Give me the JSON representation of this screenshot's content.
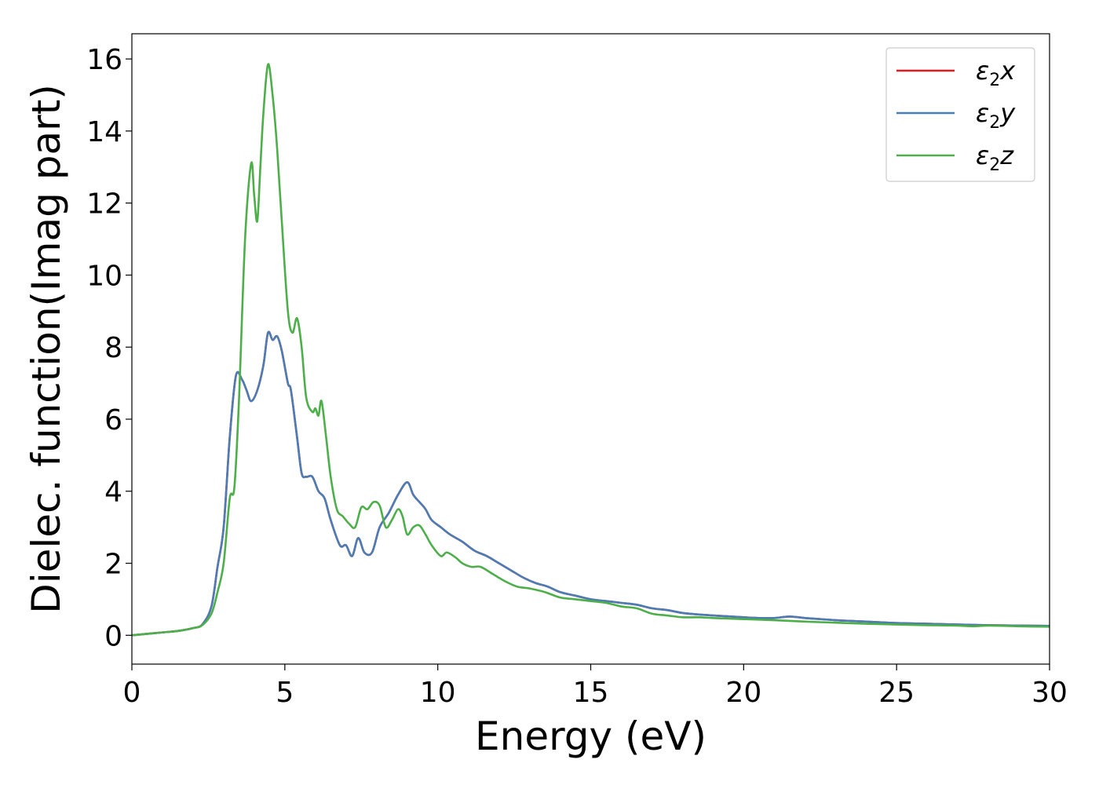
{
  "chart_data": {
    "type": "line",
    "xlabel": "Energy (eV)",
    "ylabel": "Dielec. function(Imag part)",
    "xlim": [
      0,
      30
    ],
    "ylim": [
      -0.8,
      16.7
    ],
    "xticks": [
      0,
      5,
      10,
      15,
      20,
      25,
      30
    ],
    "yticks": [
      0,
      2,
      4,
      6,
      8,
      10,
      12,
      14,
      16
    ],
    "grid": false,
    "legend_position": "top-right",
    "series": [
      {
        "name": "ε₂x",
        "legend_base": "ε",
        "legend_sub": "2",
        "legend_suffix": "x",
        "color": "#e41a1c",
        "x": [
          0,
          1,
          1.5,
          2,
          2.3,
          2.6,
          2.8,
          3.0,
          3.2,
          3.4,
          3.6,
          3.75,
          3.9,
          4.1,
          4.3,
          4.45,
          4.6,
          4.75,
          4.9,
          5.1,
          5.2,
          5.4,
          5.55,
          5.7,
          5.9,
          6.1,
          6.3,
          6.5,
          6.8,
          7.0,
          7.2,
          7.4,
          7.6,
          7.85,
          8.1,
          8.4,
          8.7,
          9.0,
          9.2,
          9.4,
          9.6,
          9.8,
          10.1,
          10.4,
          10.8,
          11.2,
          11.6,
          12.0,
          12.4,
          12.8,
          13.2,
          13.6,
          14.0,
          14.5,
          15.0,
          15.5,
          16.0,
          16.5,
          17.0,
          17.5,
          18.0,
          18.5,
          19.0,
          20.0,
          20.5,
          21.0,
          21.5,
          22.0,
          22.5,
          23.0,
          23.5,
          24.0,
          24.5,
          25.0,
          26.0,
          27.0,
          28.0,
          29.0,
          30.0
        ],
        "values": [
          0,
          0.08,
          0.12,
          0.2,
          0.3,
          0.8,
          1.9,
          3.0,
          5.5,
          7.2,
          7.1,
          6.8,
          6.5,
          6.8,
          7.5,
          8.4,
          8.2,
          8.3,
          7.9,
          7.0,
          6.8,
          5.5,
          4.5,
          4.4,
          4.4,
          4.0,
          3.8,
          3.2,
          2.5,
          2.5,
          2.2,
          2.7,
          2.3,
          2.3,
          3.0,
          3.4,
          3.9,
          4.25,
          3.9,
          3.7,
          3.5,
          3.2,
          3.0,
          2.8,
          2.6,
          2.35,
          2.2,
          2.0,
          1.8,
          1.6,
          1.45,
          1.35,
          1.2,
          1.1,
          1.0,
          0.95,
          0.9,
          0.85,
          0.75,
          0.7,
          0.62,
          0.58,
          0.55,
          0.5,
          0.48,
          0.48,
          0.52,
          0.48,
          0.45,
          0.42,
          0.4,
          0.38,
          0.36,
          0.34,
          0.32,
          0.3,
          0.28,
          0.27,
          0.26
        ]
      },
      {
        "name": "ε₂y",
        "legend_base": "ε",
        "legend_sub": "2",
        "legend_suffix": "y",
        "color": "#4a7db5",
        "x": [
          0,
          1,
          1.5,
          2,
          2.3,
          2.6,
          2.8,
          3.0,
          3.2,
          3.4,
          3.6,
          3.75,
          3.9,
          4.1,
          4.3,
          4.45,
          4.6,
          4.75,
          4.9,
          5.1,
          5.2,
          5.4,
          5.55,
          5.7,
          5.9,
          6.1,
          6.3,
          6.5,
          6.8,
          7.0,
          7.2,
          7.4,
          7.6,
          7.85,
          8.1,
          8.4,
          8.7,
          9.0,
          9.2,
          9.4,
          9.6,
          9.8,
          10.1,
          10.4,
          10.8,
          11.2,
          11.6,
          12.0,
          12.4,
          12.8,
          13.2,
          13.6,
          14.0,
          14.5,
          15.0,
          15.5,
          16.0,
          16.5,
          17.0,
          17.5,
          18.0,
          18.5,
          19.0,
          20.0,
          20.5,
          21.0,
          21.5,
          22.0,
          22.5,
          23.0,
          23.5,
          24.0,
          24.5,
          25.0,
          26.0,
          27.0,
          28.0,
          29.0,
          30.0
        ],
        "values": [
          0,
          0.08,
          0.12,
          0.2,
          0.3,
          0.8,
          1.9,
          3.0,
          5.5,
          7.2,
          7.1,
          6.8,
          6.5,
          6.8,
          7.5,
          8.4,
          8.2,
          8.3,
          7.9,
          7.0,
          6.8,
          5.5,
          4.5,
          4.4,
          4.4,
          4.0,
          3.8,
          3.2,
          2.5,
          2.5,
          2.2,
          2.7,
          2.3,
          2.3,
          3.0,
          3.4,
          3.9,
          4.25,
          3.9,
          3.7,
          3.5,
          3.2,
          3.0,
          2.8,
          2.6,
          2.35,
          2.2,
          2.0,
          1.8,
          1.6,
          1.45,
          1.35,
          1.2,
          1.1,
          1.0,
          0.95,
          0.9,
          0.85,
          0.75,
          0.7,
          0.62,
          0.58,
          0.55,
          0.5,
          0.48,
          0.48,
          0.52,
          0.48,
          0.45,
          0.42,
          0.4,
          0.38,
          0.36,
          0.34,
          0.32,
          0.3,
          0.28,
          0.27,
          0.26
        ]
      },
      {
        "name": "ε₂z",
        "legend_base": "ε",
        "legend_sub": "2",
        "legend_suffix": "z",
        "color": "#4daf4a",
        "x": [
          0,
          1,
          1.5,
          2,
          2.3,
          2.6,
          2.8,
          3.0,
          3.2,
          3.35,
          3.5,
          3.7,
          3.9,
          4.0,
          4.1,
          4.2,
          4.3,
          4.45,
          4.6,
          4.75,
          4.9,
          5.1,
          5.25,
          5.4,
          5.55,
          5.7,
          5.9,
          6.0,
          6.1,
          6.2,
          6.35,
          6.5,
          6.7,
          6.9,
          7.1,
          7.3,
          7.5,
          7.7,
          7.9,
          8.1,
          8.3,
          8.5,
          8.7,
          8.85,
          9.0,
          9.2,
          9.4,
          9.6,
          9.8,
          10.1,
          10.3,
          10.6,
          10.8,
          11.1,
          11.4,
          11.8,
          12.2,
          12.6,
          13.0,
          13.5,
          14.0,
          14.5,
          15.0,
          15.5,
          16.0,
          16.5,
          17.0,
          17.5,
          18.0,
          18.5,
          19.0,
          20.0,
          21.0,
          22.0,
          23.0,
          24.0,
          25.0,
          26.0,
          27.0,
          27.5,
          28.0,
          29.0,
          30.0
        ],
        "values": [
          0,
          0.08,
          0.12,
          0.2,
          0.28,
          0.6,
          1.2,
          2.0,
          3.8,
          4.1,
          6.5,
          11.0,
          13.1,
          12.2,
          11.5,
          13.0,
          14.5,
          15.85,
          15.0,
          13.5,
          11.5,
          9.0,
          8.4,
          8.8,
          8.0,
          6.6,
          6.2,
          6.3,
          6.1,
          6.5,
          5.5,
          4.4,
          3.5,
          3.3,
          3.1,
          3.0,
          3.55,
          3.5,
          3.7,
          3.6,
          3.0,
          3.2,
          3.5,
          3.3,
          2.8,
          3.0,
          3.05,
          2.8,
          2.5,
          2.2,
          2.3,
          2.15,
          2.0,
          1.9,
          1.9,
          1.7,
          1.5,
          1.35,
          1.3,
          1.2,
          1.05,
          1.0,
          0.95,
          0.9,
          0.8,
          0.75,
          0.6,
          0.55,
          0.5,
          0.5,
          0.48,
          0.45,
          0.42,
          0.38,
          0.35,
          0.32,
          0.3,
          0.28,
          0.27,
          0.25,
          0.27,
          0.25,
          0.24
        ]
      }
    ]
  }
}
